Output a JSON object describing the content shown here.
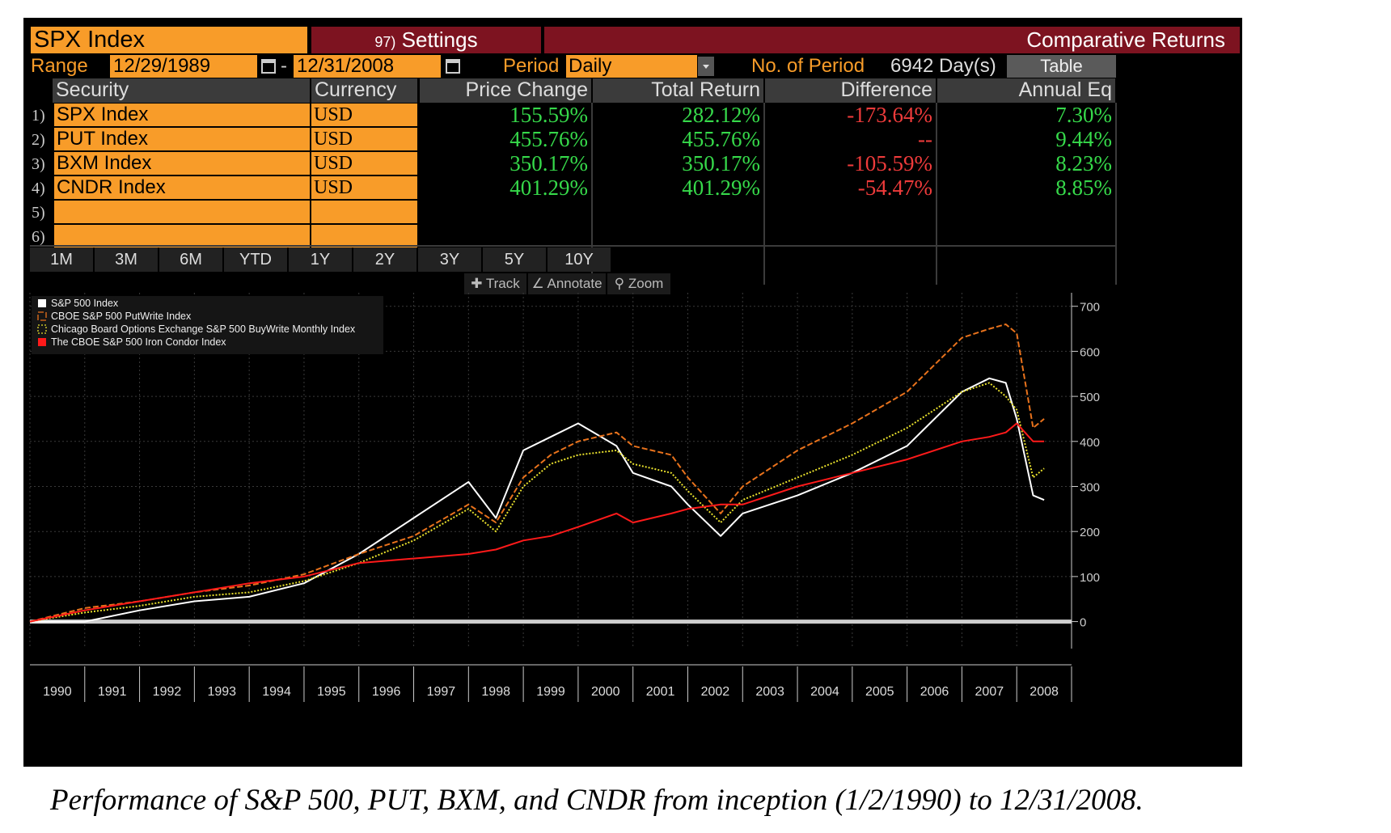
{
  "top_strip": "",
  "header": {
    "ticker": "SPX Index",
    "settings_num": "97)",
    "settings_label": "Settings",
    "title": "Comparative Returns"
  },
  "range": {
    "label": "Range",
    "start": "12/29/1989",
    "dash": "-",
    "end": "12/31/2008",
    "period_label": "Period",
    "period_value": "Daily",
    "num_label": "No. of Period",
    "num_value": "6942 Day(s)",
    "table_button": "Table"
  },
  "table": {
    "headers": [
      "Security",
      "Currency",
      "Price Change",
      "Total Return",
      "Difference",
      "Annual Eq"
    ],
    "rows": [
      {
        "num": "1)",
        "security": "SPX Index",
        "currency": "USD",
        "price_change": "155.59%",
        "total_return": "282.12%",
        "difference": "-173.64%",
        "annual_eq": "7.30%"
      },
      {
        "num": "2)",
        "security": "PUT Index",
        "currency": "USD",
        "price_change": "455.76%",
        "total_return": "455.76%",
        "difference": "--",
        "annual_eq": "9.44%"
      },
      {
        "num": "3)",
        "security": "BXM Index",
        "currency": "USD",
        "price_change": "350.17%",
        "total_return": "350.17%",
        "difference": "-105.59%",
        "annual_eq": "8.23%"
      },
      {
        "num": "4)",
        "security": "CNDR Index",
        "currency": "USD",
        "price_change": "401.29%",
        "total_return": "401.29%",
        "difference": "-54.47%",
        "annual_eq": "8.85%"
      },
      {
        "num": "5)",
        "security": "",
        "currency": "",
        "price_change": "",
        "total_return": "",
        "difference": "",
        "annual_eq": ""
      },
      {
        "num": "6)",
        "security": "",
        "currency": "",
        "price_change": "",
        "total_return": "",
        "difference": "",
        "annual_eq": ""
      }
    ]
  },
  "timeframes": [
    "1M",
    "3M",
    "6M",
    "YTD",
    "1Y",
    "2Y",
    "3Y",
    "5Y",
    "10Y"
  ],
  "tools": {
    "track": "Track",
    "annotate": "Annotate",
    "zoom": "Zoom"
  },
  "colors": {
    "orange": "#f89c29",
    "dark_red": "#7d1320",
    "green": "#36d94a",
    "red": "#ee3b3b",
    "background": "#000000"
  },
  "chart_data": {
    "type": "line",
    "x_label_years": [
      "1990",
      "1991",
      "1992",
      "1993",
      "1994",
      "1995",
      "1996",
      "1997",
      "1998",
      "1999",
      "2000",
      "2001",
      "2002",
      "2003",
      "2004",
      "2005",
      "2006",
      "2007",
      "2008"
    ],
    "ylim": [
      -60,
      730
    ],
    "yticks": [
      0,
      100,
      200,
      300,
      400,
      500,
      600,
      700
    ],
    "grid": true,
    "legend_position": "top-left",
    "x": [
      1990,
      1991,
      1992,
      1993,
      1994,
      1995,
      1996,
      1997,
      1998,
      1998.5,
      1999,
      1999.5,
      2000,
      2000.7,
      2001,
      2001.7,
      2002,
      2002.6,
      2003,
      2004,
      2005,
      2006,
      2007,
      2007.5,
      2007.8,
      2008,
      2008.3,
      2008.5
    ],
    "series": [
      {
        "name": "S&P 500 Index",
        "color": "#ffffff",
        "dash": "solid",
        "values": [
          0,
          0,
          25,
          45,
          55,
          85,
          150,
          230,
          310,
          230,
          380,
          410,
          440,
          390,
          330,
          300,
          260,
          190,
          240,
          280,
          330,
          390,
          510,
          540,
          530,
          450,
          280,
          270
        ]
      },
      {
        "name": "CBOE S&P 500 PutWrite Index",
        "color": "#e8721c",
        "dash": "dashed",
        "values": [
          0,
          30,
          45,
          65,
          80,
          105,
          150,
          190,
          260,
          220,
          320,
          370,
          400,
          420,
          390,
          370,
          320,
          240,
          300,
          380,
          440,
          510,
          630,
          650,
          660,
          640,
          430,
          450
        ]
      },
      {
        "name": "Chicago Board Options Exchange S&P 500 BuyWrite Monthly Index",
        "color": "#e8e02c",
        "dash": "dotted",
        "values": [
          0,
          20,
          35,
          55,
          65,
          90,
          130,
          180,
          250,
          200,
          300,
          350,
          370,
          380,
          350,
          330,
          290,
          220,
          270,
          320,
          370,
          430,
          510,
          530,
          500,
          470,
          320,
          340
        ]
      },
      {
        "name": "The CBOE S&P 500 Iron Condor Index",
        "color": "#ff1a1a",
        "dash": "solid",
        "values": [
          0,
          25,
          45,
          65,
          85,
          100,
          130,
          140,
          150,
          160,
          180,
          190,
          210,
          240,
          220,
          240,
          250,
          260,
          260,
          300,
          330,
          360,
          400,
          410,
          420,
          440,
          400,
          400
        ]
      }
    ]
  },
  "caption": "Performance of S&P 500, PUT, BXM, and CNDR from inception (1/2/1990) to 12/31/2008."
}
